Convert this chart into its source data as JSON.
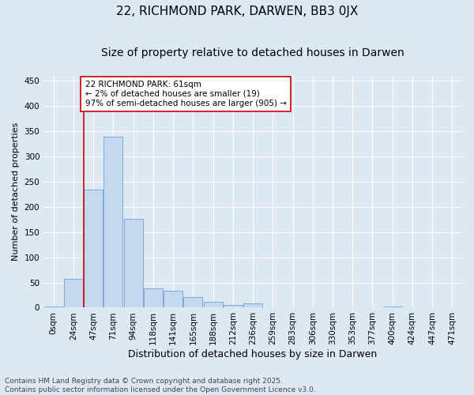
{
  "title": "22, RICHMOND PARK, DARWEN, BB3 0JX",
  "subtitle": "Size of property relative to detached houses in Darwen",
  "xlabel": "Distribution of detached houses by size in Darwen",
  "ylabel": "Number of detached properties",
  "bins": [
    "0sqm",
    "24sqm",
    "47sqm",
    "71sqm",
    "94sqm",
    "118sqm",
    "141sqm",
    "165sqm",
    "188sqm",
    "212sqm",
    "236sqm",
    "259sqm",
    "283sqm",
    "306sqm",
    "330sqm",
    "353sqm",
    "377sqm",
    "400sqm",
    "424sqm",
    "447sqm",
    "471sqm"
  ],
  "values": [
    3,
    57,
    235,
    340,
    177,
    38,
    34,
    21,
    12,
    6,
    8,
    0,
    1,
    0,
    0,
    0,
    0,
    3,
    0,
    0,
    1
  ],
  "bar_color": "#c5d8f0",
  "bar_edge_color": "#7aadd4",
  "vline_color": "#cc0000",
  "vline_x_index": 2,
  "annotation_text": "22 RICHMOND PARK: 61sqm\n← 2% of detached houses are smaller (19)\n97% of semi-detached houses are larger (905) →",
  "annotation_box_facecolor": "#ffffff",
  "annotation_box_edgecolor": "#cc0000",
  "ylim": [
    0,
    460
  ],
  "yticks": [
    0,
    50,
    100,
    150,
    200,
    250,
    300,
    350,
    400,
    450
  ],
  "background_color": "#dde8f5",
  "plot_bg_color": "#dde8f5",
  "grid_color": "#ffffff",
  "footer": "Contains HM Land Registry data © Crown copyright and database right 2025.\nContains public sector information licensed under the Open Government Licence v3.0.",
  "title_fontsize": 11,
  "subtitle_fontsize": 10,
  "xlabel_fontsize": 9,
  "ylabel_fontsize": 8,
  "tick_fontsize": 7.5,
  "annotation_fontsize": 7.5,
  "footer_fontsize": 6.5
}
